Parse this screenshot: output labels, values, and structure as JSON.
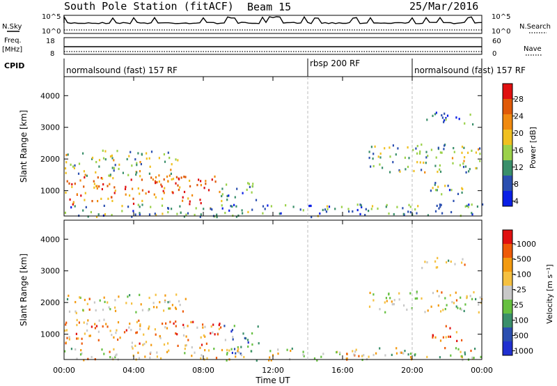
{
  "header": {
    "station": "South Pole Station (fitACF)",
    "beam": "Beam 15",
    "date": "25/Mar/2016"
  },
  "left_labels": {
    "nsky": "N.Sky",
    "nsky_top": "10^5",
    "nsky_bot": "10^0",
    "freq": "Freq.",
    "freq_unit": "[MHz]",
    "freq_top": "18",
    "freq_bot": "8",
    "cpid": "CPID"
  },
  "right_labels": {
    "nsearch": "N.Search",
    "nsearch_top": "10^5",
    "nsearch_bot": "10^0",
    "nave": "Nave",
    "nave_top": "60",
    "nave_bot": "0"
  },
  "cpid_modes": [
    {
      "label": "normalsound (fast) 157 RF",
      "start": 0,
      "end": 14
    },
    {
      "label": "rbsp 200 RF",
      "start": 14,
      "end": 20
    },
    {
      "label": "normalsound (fast) 157 RF",
      "start": 20,
      "end": 24
    }
  ],
  "colors": {
    "power": [
      "#0a1fe6",
      "#2b4fb0",
      "#3a8f6a",
      "#9bd14a",
      "#f0c020",
      "#f08a10",
      "#e05a08",
      "#e01010"
    ],
    "velocity": [
      "#e01010",
      "#ee5a08",
      "#f39a10",
      "#f5c040",
      "#c8c8c8",
      "#66c040",
      "#3a8f6a",
      "#2b4fb0",
      "#2030d0"
    ]
  },
  "chart_data": [
    {
      "type": "heatmap",
      "name": "power-panel",
      "ylabel": "Slant Range [km]",
      "x": {
        "min": 0,
        "max": 24,
        "ticks": [
          "00:00",
          "04:00",
          "08:00",
          "12:00",
          "16:00",
          "20:00",
          "00:00"
        ],
        "tick_hours": [
          0,
          4,
          8,
          12,
          16,
          20,
          24
        ]
      },
      "y": {
        "min": 200,
        "max": 4600,
        "ticks": [
          1000,
          2000,
          3000,
          4000
        ]
      },
      "colorbar": {
        "label": "Power [dB]",
        "ticks": [
          "4",
          "8",
          "12",
          "16",
          "20",
          "24",
          "28"
        ],
        "range": [
          0,
          30
        ]
      },
      "regions": [
        {
          "t0": 0.0,
          "t1": 9.0,
          "r0": 600,
          "r1": 1500,
          "level": 0.75
        },
        {
          "t0": 0.0,
          "t1": 6.5,
          "r0": 1500,
          "r1": 2300,
          "level": 0.45
        },
        {
          "t0": 9.0,
          "t1": 11.2,
          "r0": 400,
          "r1": 1300,
          "level": 0.3
        },
        {
          "t0": 17.5,
          "t1": 24.0,
          "r0": 1600,
          "r1": 2500,
          "level": 0.4
        },
        {
          "t0": 20.5,
          "t1": 23.5,
          "r0": 3100,
          "r1": 3500,
          "level": 0.2
        },
        {
          "t0": 21.0,
          "t1": 23.0,
          "r0": 700,
          "r1": 1300,
          "level": 0.35
        },
        {
          "t0": 0.0,
          "t1": 24.0,
          "r0": 200,
          "r1": 600,
          "level": 0.3
        }
      ]
    },
    {
      "type": "heatmap",
      "name": "velocity-panel",
      "ylabel": "Slant Range [km]",
      "xlabel": "Time UT",
      "x": {
        "min": 0,
        "max": 24,
        "ticks": [
          "00:00",
          "04:00",
          "08:00",
          "12:00",
          "16:00",
          "20:00",
          "00:00"
        ],
        "tick_hours": [
          0,
          4,
          8,
          12,
          16,
          20,
          24
        ]
      },
      "y": {
        "min": 200,
        "max": 4600,
        "ticks": [
          1000,
          2000,
          3000,
          4000
        ]
      },
      "colorbar": {
        "label": "Velocity [m s⁻¹]",
        "ticks": [
          "1000",
          "500",
          "100",
          "25",
          "-25",
          "-100",
          "-500",
          "-1000"
        ],
        "range": [
          -1000,
          1000
        ]
      },
      "regions": [
        {
          "t0": 0.0,
          "t1": 9.0,
          "r0": 600,
          "r1": 1500,
          "level": 0.3
        },
        {
          "t0": 0.0,
          "t1": 7.0,
          "r0": 1700,
          "r1": 2300,
          "level": 0.45
        },
        {
          "t0": 9.0,
          "t1": 11.2,
          "r0": 400,
          "r1": 1300,
          "level": 0.75
        },
        {
          "t0": 17.5,
          "t1": 24.0,
          "r0": 1700,
          "r1": 2400,
          "level": 0.45
        },
        {
          "t0": 20.5,
          "t1": 23.0,
          "r0": 3100,
          "r1": 3500,
          "level": 0.45
        },
        {
          "t0": 21.0,
          "t1": 23.0,
          "r0": 800,
          "r1": 1300,
          "level": 0.2
        },
        {
          "t0": 0.0,
          "t1": 24.0,
          "r0": 200,
          "r1": 600,
          "level": 0.45
        }
      ]
    }
  ]
}
